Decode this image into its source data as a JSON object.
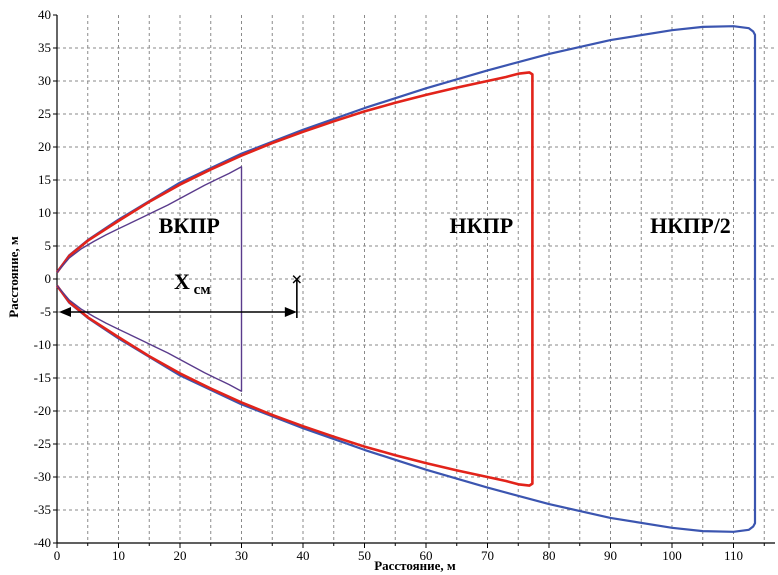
{
  "chart_data": {
    "type": "line",
    "xlabel": "Расстояние, м",
    "ylabel": "Расстояние, м",
    "xlim": [
      0,
      120
    ],
    "ylim": [
      -40,
      40
    ],
    "grid": true,
    "x_ticks": [
      0,
      10,
      20,
      30,
      40,
      50,
      60,
      70,
      80,
      90,
      100,
      110
    ],
    "y_ticks": [
      40,
      35,
      30,
      25,
      20,
      15,
      10,
      5,
      0,
      -5,
      -10,
      -15,
      -20,
      -25,
      -30,
      -35,
      -40
    ],
    "colors": {
      "vkpr": "#5a3b8c",
      "nkpr": "#e2231a",
      "nkpr2": "#3b55b0",
      "annotation": "#000000"
    },
    "series": [
      {
        "label": "ВКПР",
        "key": "vkpr",
        "x": [
          0,
          2,
          4,
          6,
          8,
          10,
          12,
          14,
          16,
          18,
          20,
          22,
          24,
          26,
          28,
          30,
          30
        ],
        "y": [
          1,
          3.2,
          4.6,
          5.7,
          6.7,
          7.6,
          8.5,
          9.4,
          10.3,
          11.2,
          12.2,
          13.2,
          14.2,
          15.1,
          16.0,
          17.0,
          -17.0
        ]
      },
      {
        "label": "НКПР",
        "key": "nkpr",
        "x": [
          0,
          2,
          5,
          10,
          15,
          20,
          25,
          30,
          35,
          40,
          45,
          50,
          55,
          60,
          65,
          70,
          73,
          75,
          76.8,
          77.3,
          77.3
        ],
        "y": [
          1,
          3.5,
          5.8,
          8.8,
          11.7,
          14.3,
          16.6,
          18.7,
          20.6,
          22.3,
          23.9,
          25.4,
          26.7,
          27.9,
          29.0,
          30.0,
          30.6,
          31.1,
          31.3,
          31.0,
          -31.0
        ]
      },
      {
        "label": "НКПР/2",
        "key": "nkpr2",
        "x": [
          0,
          2,
          5,
          10,
          20,
          30,
          40,
          50,
          60,
          70,
          80,
          90,
          100,
          105,
          110,
          112.5,
          113.2,
          113.5,
          113.5
        ],
        "y": [
          1,
          3.6,
          5.9,
          9.0,
          14.6,
          19.0,
          22.6,
          25.9,
          28.9,
          31.6,
          34.1,
          36.2,
          37.7,
          38.2,
          38.3,
          38.0,
          37.5,
          37.0,
          -37.0
        ]
      }
    ],
    "annotations": [
      {
        "text": "ВКПР",
        "x": 21.5,
        "y": 7.0
      },
      {
        "text": "НКПР",
        "x": 69,
        "y": 7.0
      },
      {
        "text": "НКПР/2",
        "x": 103,
        "y": 7.0
      }
    ],
    "xcm": {
      "label_main": "X",
      "label_sub": "см",
      "x_start": 0,
      "x_end": 39,
      "y": -5,
      "marker_label": "×",
      "marker_y": 0
    }
  }
}
